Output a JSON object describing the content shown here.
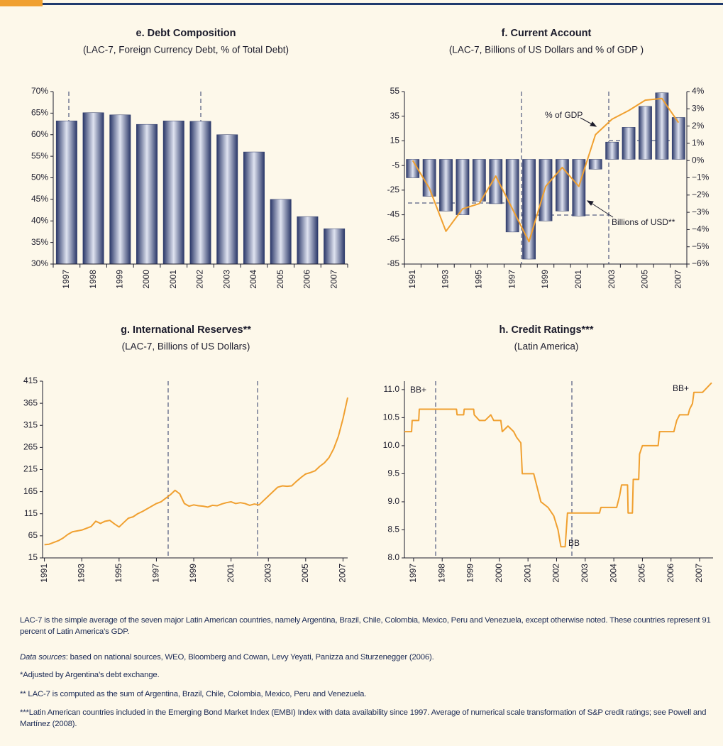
{
  "chart_data": [
    {
      "type": "bar",
      "title": "e. Debt Composition",
      "subtitle": "(LAC-7, Foreign Currency Debt, % of Total Debt)",
      "categories": [
        "1997",
        "1998",
        "1999",
        "2000",
        "2001",
        "2002",
        "2003",
        "2004",
        "2005",
        "2006",
        "2007"
      ],
      "values": [
        63.2,
        65.1,
        64.6,
        62.4,
        63.2,
        63.1,
        60,
        56,
        45,
        41,
        38.2
      ],
      "color": "#2a3768",
      "ylim": [
        30,
        70
      ],
      "yticks": [
        {
          "value": 30,
          "label": "30%"
        },
        {
          "value": 35,
          "label": "35%"
        },
        {
          "value": 40,
          "label": "40%"
        },
        {
          "value": 45,
          "label": "45%"
        },
        {
          "value": 50,
          "label": "50%"
        },
        {
          "value": 55,
          "label": "55%"
        },
        {
          "value": 60,
          "label": "60%"
        },
        {
          "value": 65,
          "label": "65%"
        },
        {
          "value": 70,
          "label": "70%"
        }
      ]
    },
    {
      "type": "combo",
      "title": "f. Current Account",
      "subtitle": "(LAC-7, Billions of US Dollars and % of GDP )",
      "categories": [
        "1991",
        null,
        "1993",
        null,
        "1995",
        null,
        "1997",
        null,
        "1999",
        null,
        "2001",
        null,
        "2003",
        null,
        "2005",
        null,
        "2007"
      ],
      "series": [
        {
          "name": "Billions of USD**",
          "type": "bar",
          "axis": "y",
          "color": "#2a3768",
          "values": [
            -15,
            -30,
            -42,
            -45,
            -34,
            -36,
            -59,
            -81,
            -50,
            -42,
            -46,
            -8,
            14,
            26,
            43,
            54,
            34
          ]
        },
        {
          "name": "% of GDP",
          "type": "line",
          "axis": "y2",
          "color": "#f0a030",
          "values": [
            0,
            -1.6,
            -4.1,
            -2.8,
            -2.5,
            -0.9,
            -2.8,
            -4.7,
            -1.5,
            -0.4,
            -1.5,
            1.5,
            2.4,
            2.9,
            3.5,
            3.6,
            2.2
          ]
        }
      ],
      "ylim": [
        -85,
        55
      ],
      "yticks": [
        -85,
        -65,
        -45,
        -25,
        -5,
        15,
        35,
        55
      ],
      "y2lim": [
        -6,
        4
      ],
      "y2ticks": [
        {
          "value": -6,
          "label": "−6%"
        },
        {
          "value": -5,
          "label": "−5%"
        },
        {
          "value": -4,
          "label": "−4%"
        },
        {
          "value": -3,
          "label": "−3%"
        },
        {
          "value": -2,
          "label": "−2%"
        },
        {
          "value": -1,
          "label": "−1%"
        },
        {
          "value": 0,
          "label": "0%"
        },
        {
          "value": 1,
          "label": "1%"
        },
        {
          "value": 2,
          "label": "2%"
        },
        {
          "value": 3,
          "label": "3%"
        },
        {
          "value": 4,
          "label": "4%"
        }
      ]
    },
    {
      "type": "line",
      "title": "g. International Reserves**",
      "subtitle": "(LAC-7, Billions of US Dollars)",
      "x": [
        1991,
        1991.25,
        1991.5,
        1991.75,
        1992,
        1992.25,
        1992.5,
        1992.75,
        1993,
        1993.25,
        1993.5,
        1993.75,
        1994,
        1994.25,
        1994.5,
        1994.75,
        1995,
        1995.25,
        1995.5,
        1995.75,
        1996,
        1996.25,
        1996.5,
        1996.75,
        1997,
        1997.25,
        1997.5,
        1997.75,
        1998,
        1998.25,
        1998.5,
        1998.75,
        1999,
        1999.25,
        1999.5,
        1999.75,
        2000,
        2000.25,
        2000.5,
        2000.75,
        2001,
        2001.25,
        2001.5,
        2001.75,
        2002,
        2002.25,
        2002.5,
        2002.75,
        2003,
        2003.25,
        2003.5,
        2003.75,
        2004,
        2004.25,
        2004.5,
        2004.75,
        2005,
        2005.25,
        2005.5,
        2005.75,
        2006,
        2006.25,
        2006.5,
        2006.75,
        2007,
        2007.25
      ],
      "values": [
        45,
        46,
        50,
        54,
        60,
        68,
        74,
        76,
        78,
        82,
        86,
        98,
        93,
        98,
        100,
        92,
        85,
        95,
        105,
        108,
        115,
        120,
        126,
        132,
        138,
        142,
        150,
        158,
        168,
        160,
        138,
        132,
        135,
        133,
        132,
        130,
        134,
        133,
        137,
        140,
        142,
        138,
        140,
        138,
        134,
        137,
        135,
        145,
        155,
        165,
        175,
        178,
        177,
        178,
        188,
        197,
        205,
        208,
        212,
        222,
        230,
        242,
        262,
        290,
        330,
        378
      ],
      "color": "#f0a030",
      "xlim": [
        1990.9,
        2007.25
      ],
      "xticks": [
        1991,
        1993,
        1995,
        1997,
        1999,
        2001,
        2003,
        2005,
        2007
      ],
      "ylim": [
        15,
        415
      ],
      "yticks": [
        15,
        65,
        115,
        165,
        215,
        265,
        315,
        365,
        415
      ]
    },
    {
      "type": "line",
      "title": "h. Credit Ratings***",
      "subtitle": "(Latin America)",
      "x": [
        1996.68,
        1996.93,
        1996.95,
        1997.18,
        1997.2,
        1998.5,
        1998.52,
        1998.75,
        1998.77,
        1999.1,
        1999.12,
        1999.3,
        1999.5,
        1999.7,
        1999.8,
        2000.05,
        2000.1,
        2000.3,
        2000.5,
        2000.6,
        2000.75,
        2000.8,
        2001.2,
        2001.3,
        2001.45,
        2001.7,
        2001.9,
        2002.05,
        2002.15,
        2002.3,
        2002.38,
        2003.5,
        2003.55,
        2004.1,
        2004.2,
        2004.27,
        2004.48,
        2004.5,
        2004.65,
        2004.68,
        2004.87,
        2004.9,
        2005.0,
        2005.55,
        2005.6,
        2006.1,
        2006.2,
        2006.3,
        2006.6,
        2006.65,
        2006.75,
        2006.8,
        2007.1,
        2007.42
      ],
      "values": [
        10.25,
        10.25,
        10.45,
        10.45,
        10.65,
        10.65,
        10.55,
        10.55,
        10.65,
        10.65,
        10.55,
        10.45,
        10.45,
        10.55,
        10.45,
        10.45,
        10.25,
        10.35,
        10.25,
        10.15,
        10.05,
        9.5,
        9.5,
        9.3,
        9.0,
        8.9,
        8.75,
        8.5,
        8.2,
        8.2,
        8.8,
        8.8,
        8.9,
        8.9,
        9.1,
        9.3,
        9.3,
        8.8,
        8.8,
        9.4,
        9.4,
        9.85,
        10.0,
        10.0,
        10.25,
        10.25,
        10.45,
        10.55,
        10.55,
        10.65,
        10.75,
        10.95,
        10.95,
        11.12
      ],
      "color": "#f0a030",
      "xlim": [
        1996.68,
        2007.47
      ],
      "xticks": [
        1997,
        1998,
        1999,
        2000,
        2001,
        2002,
        2003,
        2004,
        2005,
        2006,
        2007
      ],
      "ylim": [
        8,
        11.15
      ],
      "yticks": [
        {
          "value": 8,
          "label": "8.0"
        },
        {
          "value": 8.5,
          "label": "8.5"
        },
        {
          "value": 9,
          "label": "9.0"
        },
        {
          "value": 9.5,
          "label": "9.5"
        },
        {
          "value": 10,
          "label": "10.0"
        },
        {
          "value": 10.5,
          "label": "10.5"
        },
        {
          "value": 11,
          "label": "11.0"
        }
      ],
      "annotations": [
        "BB+",
        "BB+",
        "BB"
      ]
    }
  ],
  "notes": [
    "LAC-7 is the simple average of the seven major Latin American countries, namely Argentina, Brazil, Chile, Colombia, Mexico, Peru and Venezuela, except otherwise noted. These countries represent 91 percent of Latin America’s GDP.",
    {
      "label": "Data sources",
      "text": ": based on national sources, WEO, Bloomberg and Cowan, Levy Yeyati, Panizza and Sturzenegger (2006)."
    },
    "*Adjusted by Argentina’s debt exchange.",
    "** LAC-7 is computed as the sum of Argentina, Brazil, Chile, Colombia, Mexico, Peru and Venezuela.",
    "***Latin American countries included in the Emerging Bond Market Index (EMBI) Index with data availability since 1997. Average of numerical scale transformation of S&P credit ratings; see Powell and Martínez (2008)."
  ]
}
